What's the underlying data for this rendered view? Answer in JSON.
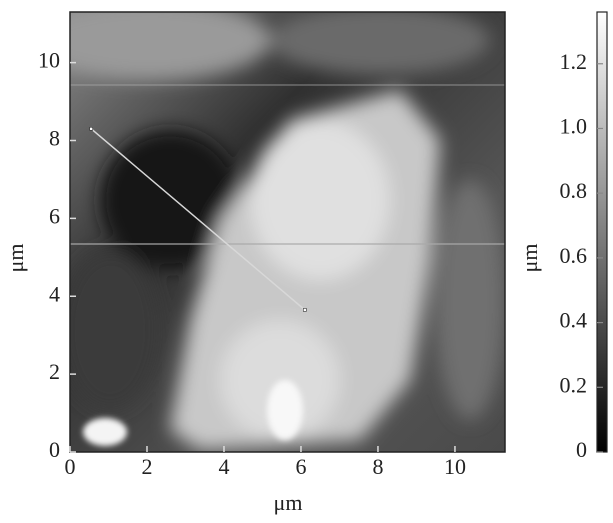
{
  "chart_data": {
    "type": "image",
    "x_label": "μm",
    "y_label": "μm",
    "colorbar_label": "μm",
    "xlim": [
      0,
      11.3
    ],
    "ylim": [
      0,
      11.3
    ],
    "xticks": [
      0,
      2,
      4,
      6,
      8,
      10
    ],
    "yticks": [
      0,
      2,
      4,
      6,
      8,
      10
    ],
    "colormap": [
      "#000000",
      "#ffffff"
    ],
    "colorbar": {
      "lim": [
        0,
        1.36
      ],
      "ticks": [
        0,
        0.2,
        0.4,
        0.6,
        0.8,
        {
          "value": 1,
          "label": "1.0"
        },
        1.2
      ]
    },
    "profile": {
      "x": [
        0.55,
        6.1
      ],
      "y": [
        8.3,
        3.65
      ],
      "color": "#d8d8d8"
    }
  }
}
